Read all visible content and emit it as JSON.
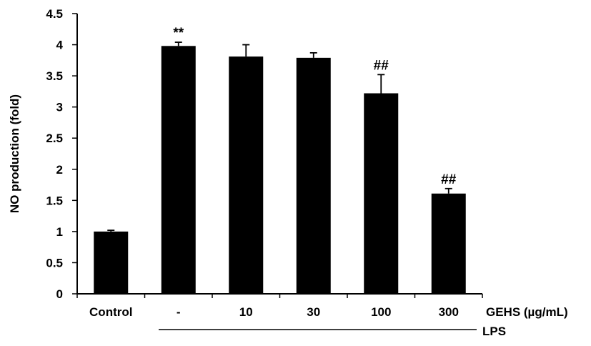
{
  "chart_data": {
    "type": "bar",
    "ylabel": "NO production (fold)",
    "ylim": [
      0,
      4.5
    ],
    "ytick_step": 0.5,
    "yticks": [
      "0",
      "0.5",
      "1",
      "1.5",
      "2",
      "2.5",
      "3",
      "3.5",
      "4",
      "4.5"
    ],
    "categories": [
      "Control",
      "-",
      "10",
      "30",
      "100",
      "300"
    ],
    "values": [
      1.0,
      3.98,
      3.81,
      3.79,
      3.22,
      1.61
    ],
    "errors": [
      0.02,
      0.06,
      0.19,
      0.08,
      0.3,
      0.08
    ],
    "annotations": [
      "",
      "**",
      "",
      "",
      "##",
      "##"
    ],
    "group_label": "GEHS (µg/mL)",
    "bracket_label": "LPS",
    "grid": false,
    "legend": "none",
    "bar_color": "#000000"
  }
}
